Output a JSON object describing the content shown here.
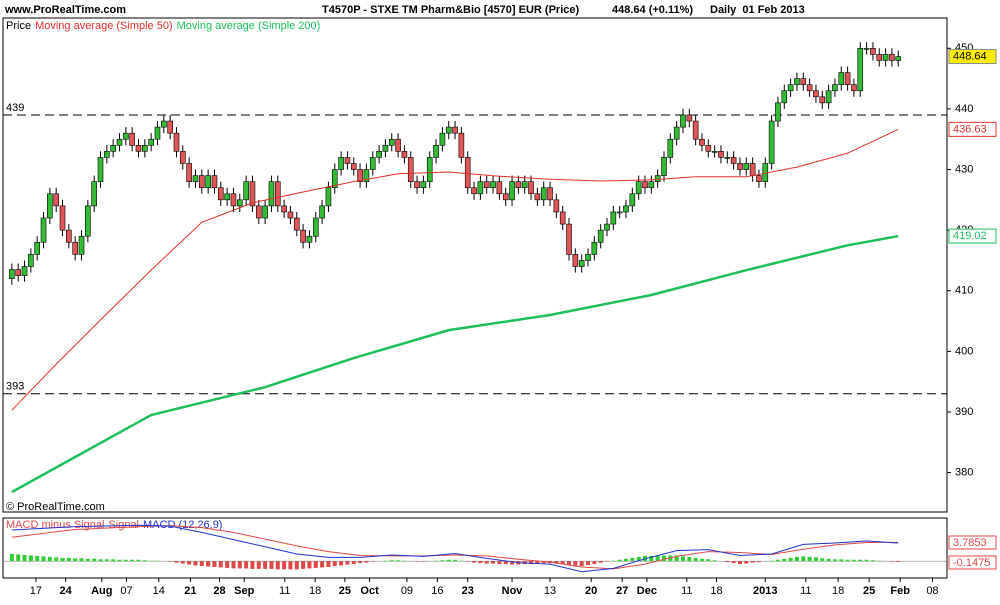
{
  "chart_data": [
    {
      "type": "candlestick",
      "site": "www.ProRealTime.com",
      "title": "T4570P - STXE TM Pharm&Bio [4570] EUR (Price)",
      "subtitle": "448.64 (+0.11%)",
      "period": "Daily  01 Feb 2013",
      "watermark": "© ProRealTime.com",
      "xlim": [
        -1.4,
        147.7
      ],
      "ylim": [
        373.5,
        455
      ],
      "yticks": [
        380,
        390,
        400,
        410,
        420,
        430,
        440,
        450
      ],
      "xticks": [
        {
          "value": 3.8,
          "label": "17"
        },
        {
          "value": 8.5,
          "label": "24"
        },
        {
          "value": 14.2,
          "label": "Aug"
        },
        {
          "value": 18.1,
          "label": "07"
        },
        {
          "value": 23.2,
          "label": "14"
        },
        {
          "value": 28.2,
          "label": "21"
        },
        {
          "value": 32.8,
          "label": "28"
        },
        {
          "value": 36.7,
          "label": "Sep"
        },
        {
          "value": 43.1,
          "label": "11"
        },
        {
          "value": 47.9,
          "label": "18"
        },
        {
          "value": 52.6,
          "label": "25"
        },
        {
          "value": 56.5,
          "label": "Oct"
        },
        {
          "value": 62.4,
          "label": "09"
        },
        {
          "value": 67.2,
          "label": "16"
        },
        {
          "value": 72,
          "label": "23"
        },
        {
          "value": 79,
          "label": "Nov"
        },
        {
          "value": 85,
          "label": "13"
        },
        {
          "value": 91.5,
          "label": "20"
        },
        {
          "value": 96.4,
          "label": "27"
        },
        {
          "value": 100.3,
          "label": "Dec"
        },
        {
          "value": 106.6,
          "label": "11"
        },
        {
          "value": 111.3,
          "label": "18"
        },
        {
          "value": 119,
          "label": "2013"
        },
        {
          "value": 125.4,
          "label": "11"
        },
        {
          "value": 130.5,
          "label": "18"
        },
        {
          "value": 135.4,
          "label": "25"
        },
        {
          "value": 140.3,
          "label": "Feb"
        },
        {
          "value": 145.4,
          "label": "08"
        }
      ],
      "hlines": [
        439,
        393
      ],
      "series": [
        {
          "name": "Price",
          "up_color": "#33bb33",
          "down_color": "#e05555",
          "open": [
            412,
            413.5,
            412.5,
            414,
            416,
            418,
            422,
            426,
            424,
            420,
            418,
            416,
            419,
            424,
            428,
            432,
            433,
            434,
            435,
            436,
            434,
            433,
            434,
            435,
            437,
            438,
            436,
            433,
            431,
            428,
            429,
            427,
            429,
            427,
            425,
            426,
            424,
            425,
            428,
            424,
            422,
            424,
            428,
            424,
            423,
            422,
            420,
            418,
            419,
            422,
            424,
            427,
            430,
            432,
            431,
            430,
            428,
            430,
            432,
            433,
            434,
            435,
            433,
            432,
            428,
            427,
            428,
            432,
            434,
            436,
            437,
            436,
            432,
            427,
            426,
            428,
            427,
            428,
            426,
            425,
            428,
            427,
            428,
            426,
            425,
            427,
            425,
            423,
            421,
            416,
            414,
            415,
            416,
            418,
            420,
            421,
            423,
            423,
            424,
            426,
            428,
            427,
            428,
            429,
            432,
            435,
            437,
            439,
            438,
            435,
            434,
            433,
            433,
            432,
            432,
            431,
            430,
            431,
            429,
            428,
            431,
            438,
            441,
            443,
            444,
            445,
            444,
            443,
            442,
            441,
            443,
            444,
            446,
            444,
            443,
            450,
            450,
            449,
            448,
            449,
            448
          ],
          "high": [
            414.5,
            414.5,
            415,
            417,
            419,
            423,
            427,
            427,
            425,
            421,
            419,
            420,
            425,
            429,
            433,
            434,
            435,
            436,
            437,
            437,
            435,
            435,
            436,
            438,
            439,
            439,
            437,
            434,
            432,
            430,
            430,
            430,
            430,
            428,
            427,
            427,
            426,
            429,
            429,
            425,
            425,
            429,
            429,
            425,
            424,
            423,
            421,
            420,
            423,
            425,
            428,
            431,
            433,
            433,
            432,
            431,
            431,
            433,
            434,
            435,
            436,
            436,
            434,
            433,
            429,
            429,
            433,
            435,
            437,
            438,
            438,
            437,
            433,
            428,
            429,
            429,
            429,
            429,
            427,
            429,
            429,
            429,
            429,
            427,
            428,
            428,
            426,
            424,
            422,
            417,
            416,
            417,
            419,
            421,
            422,
            424,
            424,
            425,
            427,
            429,
            429,
            429,
            430,
            433,
            436,
            438,
            440,
            440,
            439,
            436,
            435,
            434,
            434,
            433,
            433,
            432,
            432,
            432,
            430,
            432,
            439,
            442,
            444,
            445,
            446,
            446,
            445,
            444,
            443,
            444,
            445,
            447,
            447,
            445,
            451,
            451,
            451,
            450,
            450,
            450,
            449.64
          ],
          "low": [
            411,
            411.5,
            411.5,
            413,
            415,
            417,
            421,
            423,
            419,
            417,
            415,
            415,
            418,
            423,
            427,
            431,
            432,
            433,
            434,
            433,
            432,
            432,
            433,
            434,
            436,
            435,
            432,
            430,
            427,
            427,
            426,
            426,
            426,
            424,
            424,
            423,
            423,
            424,
            423,
            421,
            421,
            423,
            423,
            422,
            421,
            419,
            417,
            417,
            418,
            421,
            423,
            426,
            429,
            430,
            429,
            427,
            427,
            429,
            431,
            432,
            433,
            432,
            431,
            427,
            426,
            426,
            427,
            431,
            433,
            435,
            435,
            431,
            426,
            425,
            425,
            426,
            426,
            425,
            424,
            424,
            426,
            426,
            425,
            424,
            424,
            424,
            422,
            420,
            415,
            413,
            413,
            414,
            415,
            417,
            419,
            420,
            422,
            422,
            423,
            425,
            426,
            426,
            427,
            428,
            431,
            434,
            436,
            437,
            434,
            433,
            432,
            432,
            431,
            431,
            430,
            429,
            429,
            428,
            427,
            427,
            430,
            437,
            440,
            442,
            443,
            443,
            442,
            441,
            440,
            440,
            442,
            443,
            443,
            442,
            442,
            449,
            448,
            447,
            447,
            447,
            447
          ],
          "close": [
            413.5,
            412.5,
            414,
            416,
            418,
            422,
            426,
            424,
            420,
            418,
            416,
            419,
            424,
            428,
            432,
            433,
            434,
            435,
            436,
            434,
            433,
            434,
            435,
            437,
            438,
            436,
            433,
            431,
            428,
            429,
            427,
            429,
            427,
            425,
            426,
            424,
            425,
            428,
            424,
            422,
            424,
            428,
            424,
            423,
            422,
            420,
            418,
            419,
            422,
            424,
            427,
            430,
            432,
            431,
            430,
            428,
            430,
            432,
            433,
            434,
            435,
            433,
            432,
            428,
            427,
            428,
            432,
            434,
            436,
            437,
            436,
            432,
            427,
            426,
            428,
            427,
            428,
            426,
            425,
            428,
            427,
            428,
            426,
            425,
            427,
            425,
            423,
            421,
            416,
            414,
            415,
            416,
            418,
            420,
            421,
            423,
            423,
            424,
            426,
            428,
            427,
            428,
            429,
            432,
            435,
            437,
            439,
            438,
            435,
            434,
            433,
            433,
            432,
            432,
            431,
            430,
            431,
            429,
            428,
            431,
            438,
            441,
            443,
            444,
            445,
            444,
            443,
            442,
            441,
            443,
            444,
            446,
            444,
            443,
            450,
            450,
            449,
            448,
            449,
            448,
            448.64
          ]
        },
        {
          "name": "Moving average (Simple 50)",
          "color": "#e0302a",
          "x": [
            0,
            7,
            14,
            22,
            30,
            38,
            46,
            54,
            61,
            69,
            77,
            85,
            93,
            101,
            108,
            116,
            124,
            132,
            140
          ],
          "values": [
            390.3,
            397.9,
            405.2,
            413.4,
            421.3,
            424.5,
            426.3,
            428,
            429.3,
            429.6,
            428.9,
            428.4,
            428.1,
            428.3,
            428.8,
            428.8,
            430.4,
            432.7,
            436.63
          ]
        },
        {
          "name": "Moving average (Simple 200)",
          "color": "#1dbf5a",
          "x": [
            0,
            22,
            40,
            54,
            69,
            85,
            101,
            116,
            132,
            140
          ],
          "values": [
            376.8,
            389.5,
            394.1,
            398.9,
            403.5,
            406,
            409.3,
            413.4,
            417.5,
            419.02
          ]
        }
      ]
    },
    {
      "type": "macd",
      "ylim": [
        -3.5,
        9
      ],
      "series": [
        {
          "name": "MACD minus Signal",
          "color": "#e04848",
          "up_color": "#33cc33",
          "values": [
            1.5,
            1.4,
            1.3,
            1.2,
            1.1,
            1.0,
            0.9,
            0.8,
            0.7,
            0.7,
            0.6,
            0.6,
            0.5,
            0.5,
            0.4,
            0.4,
            0.4,
            0.3,
            0.3,
            0.3,
            0.3,
            0.2,
            0.1,
            0.1,
            0.0,
            -0.1,
            -0.3,
            -0.5,
            -0.7,
            -0.9,
            -1.0,
            -1.1,
            -1.2,
            -1.3,
            -1.4,
            -1.5,
            -1.5,
            -1.5,
            -1.6,
            -1.6,
            -1.6,
            -1.6,
            -1.7,
            -1.7,
            -1.7,
            -1.7,
            -1.6,
            -1.5,
            -1.4,
            -1.3,
            -1.2,
            -1.0,
            -0.9,
            -0.7,
            -0.6,
            -0.4,
            -0.3,
            -0.1,
            0.0,
            0.1,
            0.2,
            0.2,
            0.1,
            0.0,
            -0.1,
            -0.1,
            0.0,
            0.1,
            0.2,
            0.3,
            0.3,
            0.1,
            -0.1,
            -0.3,
            -0.4,
            -0.5,
            -0.5,
            -0.6,
            -0.6,
            -0.7,
            -0.7,
            -0.6,
            -0.6,
            -0.5,
            -0.4,
            -0.4,
            -0.5,
            -0.7,
            -0.8,
            -0.9,
            -1.0,
            -0.8,
            -0.6,
            -0.3,
            -0.1,
            0.1,
            0.3,
            0.5,
            0.7,
            0.9,
            1.1,
            1.1,
            1.2,
            1.2,
            1.2,
            1.2,
            1.0,
            0.9,
            0.7,
            0.5,
            0.4,
            0.2,
            0.0,
            -0.2,
            -0.4,
            -0.6,
            -0.5,
            -0.3,
            -0.2,
            0.0,
            0.1,
            0.3,
            0.5,
            0.7,
            0.9,
            1.0,
            0.9,
            0.8,
            0.6,
            0.5,
            0.4,
            0.4,
            0.3,
            0.3,
            0.3,
            0.3,
            0.2,
            0.1,
            0.0,
            -0.1,
            -0.1475
          ]
        },
        {
          "name": "Signal",
          "color": "#e04848",
          "x": [
            0,
            10,
            20,
            25,
            30,
            35,
            40,
            45,
            50,
            55,
            60,
            65,
            70,
            75,
            80,
            85,
            90,
            95,
            100,
            105,
            110,
            115,
            120,
            125,
            130,
            135,
            140
          ],
          "values": [
            5.0,
            6.6,
            7.2,
            7.4,
            7.0,
            6.0,
            4.6,
            3.2,
            2.0,
            1.2,
            1.1,
            1.1,
            1.3,
            1.1,
            0.4,
            -0.2,
            -1.2,
            -1.6,
            -0.6,
            1.0,
            2.0,
            1.8,
            1.4,
            2.5,
            3.4,
            3.9,
            3.93
          ]
        },
        {
          "name": "MACD (12,26,9)",
          "color": "#2233cc",
          "x": [
            0,
            10,
            20,
            25,
            30,
            35,
            40,
            45,
            50,
            55,
            60,
            65,
            70,
            75,
            80,
            85,
            90,
            95,
            100,
            105,
            110,
            115,
            120,
            125,
            130,
            135,
            140
          ],
          "values": [
            6.5,
            7.2,
            7.5,
            7.3,
            6.0,
            4.5,
            3.0,
            1.5,
            0.8,
            0.8,
            1.3,
            1.0,
            1.6,
            0.6,
            -0.3,
            -0.6,
            -2.2,
            -1.5,
            0.5,
            2.2,
            2.4,
            1.2,
            1.5,
            3.5,
            3.8,
            4.2,
            3.7853
          ]
        }
      ]
    }
  ]
}
